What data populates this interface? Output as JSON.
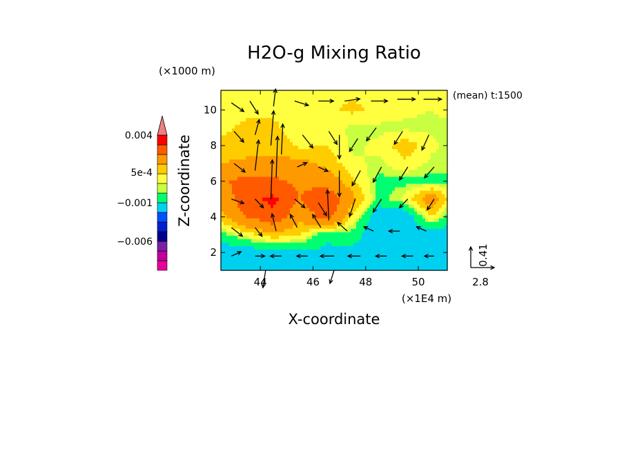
{
  "chart_data": {
    "type": "heatmap",
    "title": "H2O-g Mixing Ratio",
    "xlabel": "X-coordinate",
    "ylabel": "Z-coordinate",
    "x_unit": "(×1E4 m)",
    "y_unit": "(×1000 m)",
    "annotation": "(mean) t:1500",
    "xlim": [
      42.5,
      51.1
    ],
    "ylim": [
      1.0,
      11.1
    ],
    "x_ticks": [
      44,
      46,
      48,
      50
    ],
    "y_ticks": [
      2,
      4,
      6,
      8,
      10
    ],
    "colorbar": {
      "tick_labels": [
        {
          "label": "0.004",
          "level": 0.004
        },
        {
          "label": "5e-4",
          "level": 0.0005
        },
        {
          "label": "−0.001",
          "level": -0.001
        },
        {
          "label": "−0.006",
          "level": -0.006
        }
      ],
      "colors_bottom_to_top": [
        "#e8009a",
        "#c0009a",
        "#7a20a8",
        "#00008c",
        "#0020d0",
        "#0050ff",
        "#00d0f0",
        "#00ff70",
        "#c8ff40",
        "#ffff40",
        "#ffcc00",
        "#ff9900",
        "#ff5a00",
        "#ff0000",
        "#f08080"
      ],
      "extend_top": true
    },
    "vector_reference": {
      "x_label": "2.8",
      "z_label": "0.41"
    },
    "field_grid": {
      "x": [
        42.5,
        43.5,
        44.5,
        45.5,
        46.5,
        47.5,
        48.5,
        49.5,
        50.5,
        51.1
      ],
      "z": [
        1,
        2,
        3,
        4,
        5,
        6,
        7,
        8,
        9,
        10,
        11
      ],
      "values": [
        [
          -0.0012,
          -0.0012,
          -0.0012,
          -0.0011,
          -0.0012,
          -0.0011,
          -0.001,
          -0.001,
          -0.0011,
          -0.0012
        ],
        [
          -0.001,
          -0.001,
          -0.0009,
          -0.0008,
          -0.0007,
          -0.0008,
          -0.0009,
          -0.001,
          -0.001,
          -0.0011
        ],
        [
          -0.0003,
          0.0003,
          0.0008,
          0.0005,
          -0.0005,
          -0.0003,
          -0.0011,
          -0.001,
          -0.0011,
          -0.0009
        ],
        [
          0.0008,
          0.002,
          0.0028,
          0.0012,
          0.0025,
          0.0004,
          -0.0011,
          -0.0011,
          0.0005,
          -0.0003
        ],
        [
          0.0012,
          0.0028,
          0.0032,
          0.002,
          0.003,
          0.0012,
          -0.0003,
          0.0002,
          0.0015,
          0.0005
        ],
        [
          0.0018,
          0.0024,
          0.0022,
          0.0018,
          0.0015,
          0.0006,
          -0.0002,
          -0.0002,
          -0.0002,
          -0.0002
        ],
        [
          0.001,
          0.0012,
          0.0012,
          0.0012,
          0.0008,
          0.0002,
          0.0,
          0.0004,
          0.0,
          0.0
        ],
        [
          0.0006,
          0.0006,
          0.0008,
          0.0004,
          0.0005,
          0.0,
          0.0002,
          0.0008,
          0.0002,
          0.0
        ],
        [
          0.0004,
          0.0006,
          0.0006,
          0.0002,
          0.0004,
          0.0,
          0.0,
          0.0,
          0.0,
          0.0
        ],
        [
          0.0003,
          0.0004,
          0.0004,
          0.0003,
          0.0004,
          0.0006,
          0.0004,
          0.0002,
          0.0001,
          0.0002
        ],
        [
          0.0004,
          0.0004,
          0.0004,
          0.0003,
          0.0004,
          0.0004,
          0.0003,
          0.0003,
          0.0003,
          0.0004
        ]
      ]
    },
    "wind_vectors": [
      {
        "x": 42.9,
        "z": 10.4,
        "u": 1.8,
        "w": -0.2
      },
      {
        "x": 43.6,
        "z": 10.5,
        "u": 1.2,
        "w": -0.3
      },
      {
        "x": 44.5,
        "z": 10.2,
        "u": 0.3,
        "w": 0.4
      },
      {
        "x": 45.3,
        "z": 10.5,
        "u": 2.0,
        "w": -0.1
      },
      {
        "x": 46.2,
        "z": 10.5,
        "u": 2.2,
        "w": 0.0
      },
      {
        "x": 47.2,
        "z": 10.5,
        "u": 2.2,
        "w": 0.05
      },
      {
        "x": 48.2,
        "z": 10.5,
        "u": 2.4,
        "w": 0.0
      },
      {
        "x": 49.2,
        "z": 10.6,
        "u": 2.6,
        "w": 0.0
      },
      {
        "x": 50.2,
        "z": 10.6,
        "u": 2.6,
        "w": 0.0
      },
      {
        "x": 43.0,
        "z": 8.8,
        "u": 1.4,
        "w": -0.25
      },
      {
        "x": 43.8,
        "z": 8.6,
        "u": 0.6,
        "w": 0.35
      },
      {
        "x": 44.4,
        "z": 8.0,
        "u": 0.4,
        "w": 0.8
      },
      {
        "x": 44.8,
        "z": 7.5,
        "u": 0.2,
        "w": 0.7
      },
      {
        "x": 45.6,
        "z": 8.6,
        "u": 1.5,
        "w": -0.3
      },
      {
        "x": 46.6,
        "z": 8.8,
        "u": 1.2,
        "w": -0.3
      },
      {
        "x": 47.0,
        "z": 8.6,
        "u": 0.0,
        "w": -0.55
      },
      {
        "x": 47.7,
        "z": 8.4,
        "u": -1.2,
        "w": -0.3
      },
      {
        "x": 48.4,
        "z": 9.0,
        "u": -1.4,
        "w": -0.3
      },
      {
        "x": 49.4,
        "z": 8.8,
        "u": -1.2,
        "w": -0.3
      },
      {
        "x": 50.4,
        "z": 8.6,
        "u": -1.0,
        "w": -0.35
      },
      {
        "x": 43.0,
        "z": 7.0,
        "u": 1.6,
        "w": -0.2
      },
      {
        "x": 43.8,
        "z": 6.6,
        "u": 0.5,
        "w": 0.7
      },
      {
        "x": 44.6,
        "z": 6.2,
        "u": 0.2,
        "w": 0.95
      },
      {
        "x": 45.4,
        "z": 6.8,
        "u": 1.4,
        "w": 0.1
      },
      {
        "x": 46.2,
        "z": 6.8,
        "u": 1.4,
        "w": -0.1
      },
      {
        "x": 47.0,
        "z": 6.6,
        "u": 0.0,
        "w": -0.6
      },
      {
        "x": 47.8,
        "z": 6.6,
        "u": -1.2,
        "w": -0.35
      },
      {
        "x": 48.6,
        "z": 6.8,
        "u": -1.2,
        "w": -0.35
      },
      {
        "x": 49.6,
        "z": 6.8,
        "u": -1.2,
        "w": -0.3
      },
      {
        "x": 50.6,
        "z": 6.8,
        "u": -1.4,
        "w": -0.25
      },
      {
        "x": 42.9,
        "z": 5.0,
        "u": 1.8,
        "w": -0.1
      },
      {
        "x": 43.8,
        "z": 5.0,
        "u": 1.2,
        "w": -0.2
      },
      {
        "x": 44.4,
        "z": 5.0,
        "u": 0.2,
        "w": 0.9
      },
      {
        "x": 45.3,
        "z": 5.0,
        "u": 1.5,
        "w": -0.2
      },
      {
        "x": 46.2,
        "z": 4.8,
        "u": 1.2,
        "w": -0.3
      },
      {
        "x": 46.6,
        "z": 3.8,
        "u": -0.2,
        "w": 0.7
      },
      {
        "x": 47.6,
        "z": 5.0,
        "u": -0.8,
        "w": -0.4
      },
      {
        "x": 48.6,
        "z": 5.0,
        "u": -1.2,
        "w": -0.3
      },
      {
        "x": 49.6,
        "z": 5.0,
        "u": -1.2,
        "w": -0.2
      },
      {
        "x": 50.6,
        "z": 5.0,
        "u": -1.0,
        "w": -0.25
      },
      {
        "x": 42.9,
        "z": 3.4,
        "u": 1.6,
        "w": -0.2
      },
      {
        "x": 43.8,
        "z": 3.4,
        "u": 1.0,
        "w": -0.2
      },
      {
        "x": 44.6,
        "z": 3.2,
        "u": -0.6,
        "w": 0.4
      },
      {
        "x": 45.4,
        "z": 3.4,
        "u": -1.0,
        "w": 0.3
      },
      {
        "x": 46.3,
        "z": 3.4,
        "u": -1.2,
        "w": 0.3
      },
      {
        "x": 47.3,
        "z": 3.2,
        "u": -1.4,
        "w": 0.2
      },
      {
        "x": 48.3,
        "z": 3.2,
        "u": -1.4,
        "w": 0.1
      },
      {
        "x": 49.3,
        "z": 3.2,
        "u": -1.6,
        "w": 0.0
      },
      {
        "x": 50.3,
        "z": 3.2,
        "u": -1.4,
        "w": 0.1
      },
      {
        "x": 42.9,
        "z": 1.8,
        "u": 1.4,
        "w": 0.1
      },
      {
        "x": 43.8,
        "z": 1.8,
        "u": 1.4,
        "w": 0.0
      },
      {
        "x": 44.8,
        "z": 1.8,
        "u": -1.6,
        "w": 0.0
      },
      {
        "x": 45.8,
        "z": 1.8,
        "u": -1.6,
        "w": 0.0
      },
      {
        "x": 46.8,
        "z": 1.8,
        "u": -2.0,
        "w": 0.0
      },
      {
        "x": 47.8,
        "z": 1.8,
        "u": -1.8,
        "w": 0.0
      },
      {
        "x": 48.8,
        "z": 1.8,
        "u": -1.6,
        "w": 0.0
      },
      {
        "x": 49.8,
        "z": 1.8,
        "u": -1.6,
        "w": 0.0
      },
      {
        "x": 50.6,
        "z": 1.8,
        "u": -1.4,
        "w": 0.0
      },
      {
        "x": 44.2,
        "z": 1.0,
        "u": -0.4,
        "w": -0.4
      },
      {
        "x": 46.8,
        "z": 1.0,
        "u": -0.6,
        "w": -0.3
      }
    ]
  }
}
